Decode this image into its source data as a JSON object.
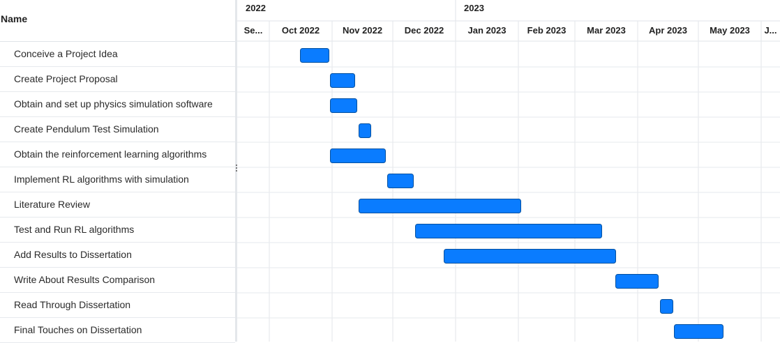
{
  "header": {
    "name_label": "Name"
  },
  "chart_data": {
    "type": "gantt",
    "years": [
      {
        "label": "2022",
        "start": "2022-09-01"
      },
      {
        "label": "2023",
        "start": "2023-01-01"
      }
    ],
    "months": [
      {
        "label": "Se...",
        "start": "2022-09-01"
      },
      {
        "label": "Oct 2022",
        "start": "2022-10-01"
      },
      {
        "label": "Nov 2022",
        "start": "2022-11-01"
      },
      {
        "label": "Dec 2022",
        "start": "2022-12-01"
      },
      {
        "label": "Jan 2023",
        "start": "2023-01-01"
      },
      {
        "label": "Feb 2023",
        "start": "2023-02-01"
      },
      {
        "label": "Mar 2023",
        "start": "2023-03-01"
      },
      {
        "label": "Apr 2023",
        "start": "2023-04-01"
      },
      {
        "label": "May 2023",
        "start": "2023-05-01"
      },
      {
        "label": "J...",
        "start": "2023-06-01"
      }
    ],
    "tasks": [
      {
        "name": "Conceive a Project Idea",
        "start": "2022-10-16",
        "end": "2022-10-30"
      },
      {
        "name": "Create Project Proposal",
        "start": "2022-10-31",
        "end": "2022-11-12"
      },
      {
        "name": "Obtain and set up physics simulation software",
        "start": "2022-10-31",
        "end": "2022-11-13"
      },
      {
        "name": "Create Pendulum Test Simulation",
        "start": "2022-11-14",
        "end": "2022-11-20"
      },
      {
        "name": "Obtain the reinforcement learning algorithms",
        "start": "2022-10-31",
        "end": "2022-11-27"
      },
      {
        "name": "Implement RL algorithms with simulation",
        "start": "2022-11-28",
        "end": "2022-12-11"
      },
      {
        "name": "Literature Review",
        "start": "2022-11-14",
        "end": "2023-02-02"
      },
      {
        "name": "Test and Run RL algorithms",
        "start": "2022-12-12",
        "end": "2023-03-14"
      },
      {
        "name": "Add Results to Dissertation",
        "start": "2022-12-26",
        "end": "2023-03-21"
      },
      {
        "name": "Write About Results Comparison",
        "start": "2023-03-21",
        "end": "2023-04-11"
      },
      {
        "name": "Read Through Dissertation",
        "start": "2023-04-12",
        "end": "2023-04-18"
      },
      {
        "name": "Final Touches on Dissertation",
        "start": "2023-04-19",
        "end": "2023-05-13"
      }
    ]
  }
}
